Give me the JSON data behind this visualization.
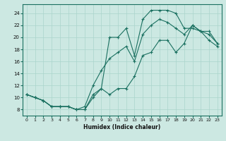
{
  "bg_color": "#cce8e2",
  "grid_color": "#aad4cc",
  "line_color": "#1a7060",
  "xlabel": "Humidex (Indice chaleur)",
  "xlim": [
    -0.5,
    23.5
  ],
  "ylim": [
    7.0,
    25.5
  ],
  "xticks": [
    0,
    1,
    2,
    3,
    4,
    5,
    6,
    7,
    8,
    9,
    10,
    11,
    12,
    13,
    14,
    15,
    16,
    17,
    18,
    19,
    20,
    21,
    22,
    23
  ],
  "yticks": [
    8,
    10,
    12,
    14,
    16,
    18,
    20,
    22,
    24
  ],
  "line_top_x": [
    0,
    1,
    2,
    3,
    4,
    5,
    6,
    7,
    8,
    9,
    10,
    11,
    12,
    13,
    14,
    15,
    16,
    17,
    18,
    19,
    20,
    21,
    22,
    23
  ],
  "line_top_y": [
    10.5,
    10.0,
    9.5,
    8.5,
    8.5,
    8.5,
    8.0,
    8.0,
    10.0,
    11.5,
    20.0,
    20.0,
    21.5,
    17.0,
    23.0,
    24.5,
    24.5,
    24.5,
    24.0,
    21.5,
    21.5,
    21.0,
    21.0,
    19.0
  ],
  "line_bot_x": [
    0,
    1,
    2,
    3,
    4,
    5,
    6,
    7,
    8,
    9,
    10,
    11,
    12,
    13,
    14,
    15,
    16,
    17,
    18,
    19,
    20,
    21,
    22,
    23
  ],
  "line_bot_y": [
    10.5,
    10.0,
    9.5,
    8.5,
    8.5,
    8.5,
    8.0,
    8.0,
    10.5,
    11.5,
    10.5,
    11.5,
    11.5,
    13.5,
    17.0,
    17.5,
    19.5,
    19.5,
    17.5,
    19.0,
    22.0,
    21.0,
    19.5,
    18.5
  ],
  "line_mid_x": [
    0,
    1,
    2,
    3,
    4,
    5,
    6,
    7,
    8,
    9,
    10,
    11,
    12,
    13,
    14,
    15,
    16,
    17,
    18,
    19,
    20,
    21,
    22,
    23
  ],
  "line_mid_y": [
    10.5,
    10.0,
    9.5,
    8.5,
    8.5,
    8.5,
    8.0,
    8.5,
    12.0,
    14.5,
    16.5,
    17.5,
    18.5,
    16.0,
    20.5,
    22.0,
    23.0,
    22.5,
    21.5,
    20.5,
    22.0,
    21.0,
    20.5,
    19.0
  ]
}
